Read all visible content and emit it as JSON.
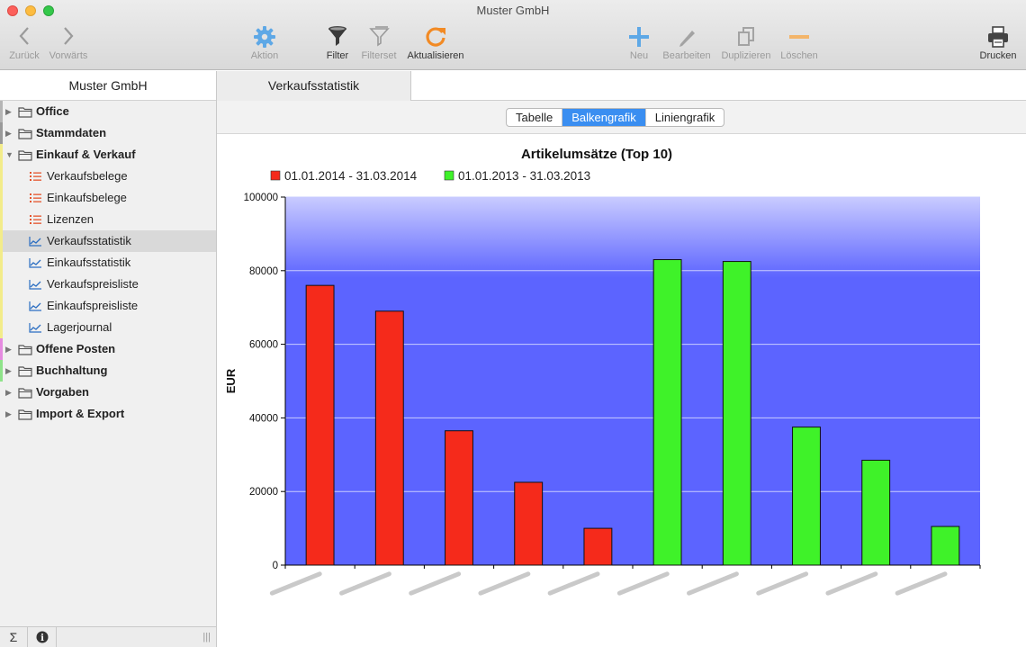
{
  "window": {
    "title": "Muster GmbH"
  },
  "toolbar": {
    "back": "Zurück",
    "forward": "Vorwärts",
    "action": "Aktion",
    "filter": "Filter",
    "filterset": "Filterset",
    "refresh": "Aktualisieren",
    "new": "Neu",
    "edit": "Bearbeiten",
    "duplicate": "Duplizieren",
    "delete": "Löschen",
    "print": "Drucken"
  },
  "sidebar": {
    "header": "Muster GmbH",
    "items": [
      {
        "label": "Office",
        "kind": "folder",
        "expanded": false,
        "stripe": "#b5b5b5"
      },
      {
        "label": "Stammdaten",
        "kind": "folder",
        "expanded": false,
        "stripe": "#9a9a9a"
      },
      {
        "label": "Einkauf & Verkauf",
        "kind": "folder",
        "expanded": true,
        "stripe": "#f3ec8a"
      },
      {
        "label": "Verkaufsbelege",
        "kind": "list",
        "icon": "list-icon",
        "stripe": "#f3ec8a"
      },
      {
        "label": "Einkaufsbelege",
        "kind": "list",
        "icon": "list-icon",
        "stripe": "#f3ec8a"
      },
      {
        "label": "Lizenzen",
        "kind": "list",
        "icon": "list-icon",
        "stripe": "#f3ec8a"
      },
      {
        "label": "Verkaufsstatistik",
        "kind": "chart",
        "icon": "line-chart-icon",
        "selected": true,
        "stripe": "#f3ec8a"
      },
      {
        "label": "Einkaufsstatistik",
        "kind": "chart",
        "icon": "line-chart-icon",
        "stripe": "#f3ec8a"
      },
      {
        "label": "Verkaufspreisliste",
        "kind": "chart",
        "icon": "line-chart-icon",
        "stripe": "#f3ec8a"
      },
      {
        "label": "Einkaufspreisliste",
        "kind": "chart",
        "icon": "line-chart-icon",
        "stripe": "#f3ec8a"
      },
      {
        "label": "Lagerjournal",
        "kind": "chart",
        "icon": "line-chart-icon",
        "stripe": "#f3ec8a"
      },
      {
        "label": "Offene Posten",
        "kind": "folder",
        "expanded": false,
        "stripe": "#e58be0"
      },
      {
        "label": "Buchhaltung",
        "kind": "folder",
        "expanded": false,
        "stripe": "#8fe38a"
      },
      {
        "label": "Vorgaben",
        "kind": "folder",
        "expanded": false,
        "stripe": ""
      },
      {
        "label": "Import & Export",
        "kind": "folder",
        "expanded": false,
        "stripe": ""
      }
    ],
    "footer": {
      "sum": "Σ",
      "info": "i",
      "grip": "|||"
    }
  },
  "main": {
    "tab": "Verkaufsstatistik",
    "views": [
      {
        "label": "Tabelle",
        "active": false
      },
      {
        "label": "Balkengrafik",
        "active": true
      },
      {
        "label": "Liniengrafik",
        "active": false
      }
    ]
  },
  "chart_data": {
    "type": "bar",
    "title": "Artikelumsätze (Top 10)",
    "ylabel": "EUR",
    "xlabel": "",
    "ylim": [
      0,
      100000
    ],
    "yticks": [
      0,
      20000,
      40000,
      60000,
      80000,
      100000
    ],
    "grid": true,
    "legend_position": "top-left",
    "plot_colors": {
      "top": "#c9cbff",
      "bottom": "#5c64ff",
      "gridline": "#c8ccff"
    },
    "categories": [
      "",
      "",
      "",
      "",
      "",
      "",
      "",
      "",
      "",
      ""
    ],
    "series": [
      {
        "name": "01.01.2014 - 31.03.2014",
        "color": "#f52a1b",
        "values": [
          76000,
          69000,
          36500,
          22500,
          10000,
          null,
          null,
          null,
          null,
          null
        ]
      },
      {
        "name": "01.01.2013 - 31.03.2013",
        "color": "#3ff229",
        "values": [
          null,
          null,
          null,
          null,
          null,
          83000,
          82500,
          37500,
          28500,
          10500
        ]
      }
    ]
  }
}
